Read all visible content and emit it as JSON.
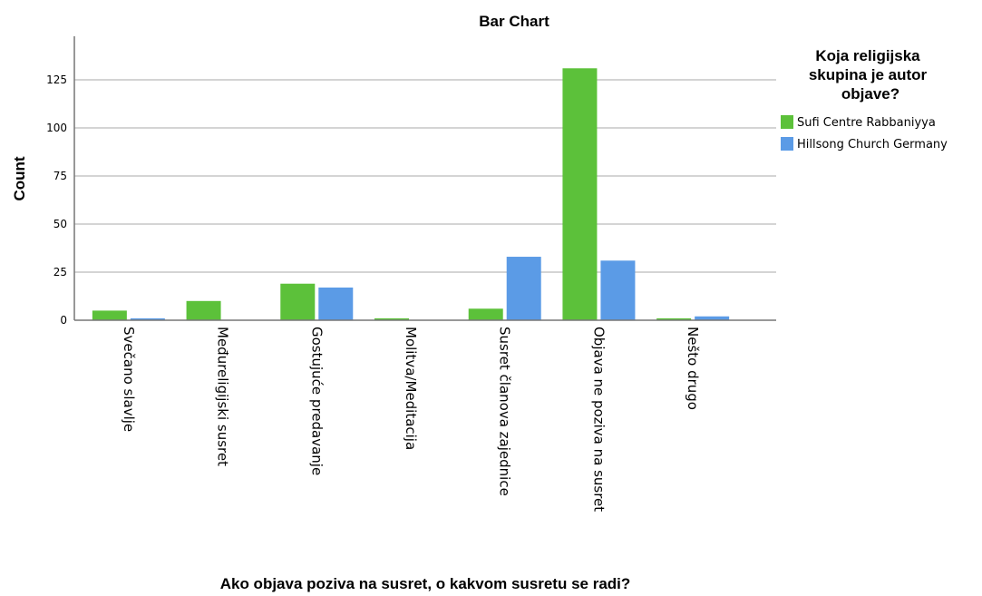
{
  "chart_data": {
    "type": "bar",
    "title": "Bar Chart",
    "xlabel": "Ako objava poziva na susret, o kakvom susretu se radi?",
    "ylabel": "Count",
    "ylim": [
      0,
      145
    ],
    "yticks": [
      0,
      25,
      50,
      75,
      100,
      125
    ],
    "grid": true,
    "legend_position": "right",
    "legend_title": [
      "Koja religijska",
      "skupina je autor",
      "objave?"
    ],
    "categories": [
      "Svečano slavlje",
      "Međureligijski susret",
      "Gostujuće predavanje",
      "Molitva/Meditacija",
      "Susret članova zajednice",
      "Objava ne poziva na susret",
      "Nešto drugo"
    ],
    "series": [
      {
        "name": "Sufi Centre Rabbaniyya",
        "color": "#5cc13a",
        "values": [
          5,
          10,
          19,
          1,
          6,
          131,
          1
        ]
      },
      {
        "name": "Hillsong Church Germany",
        "color": "#5b9be6",
        "values": [
          1,
          0,
          17,
          0,
          33,
          31,
          2
        ]
      }
    ]
  }
}
